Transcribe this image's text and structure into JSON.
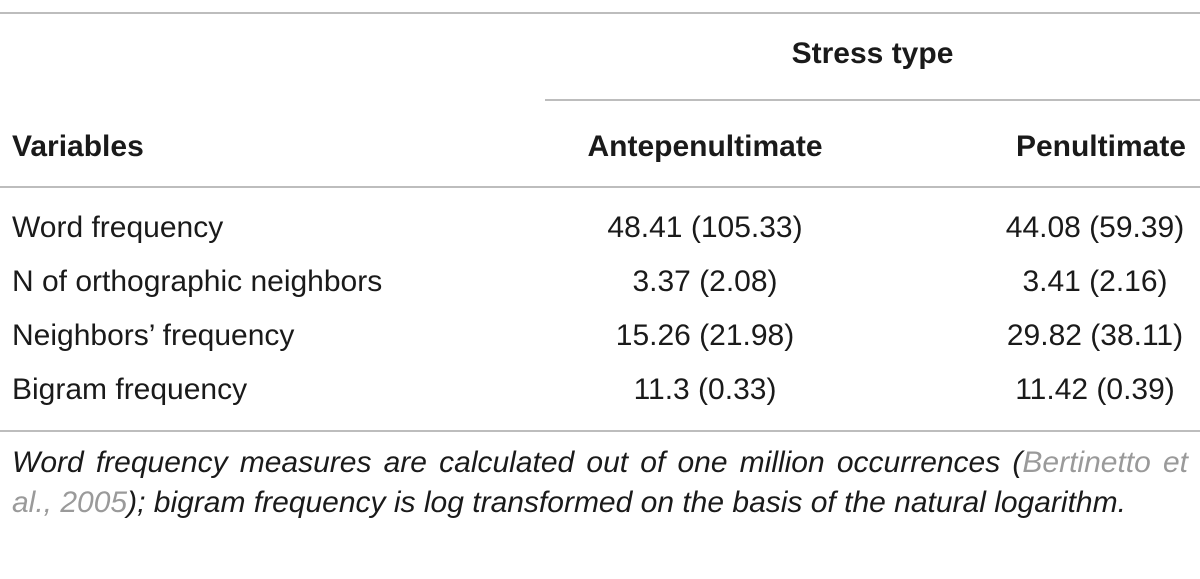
{
  "table": {
    "group_header": "Stress type",
    "columns": {
      "variables": "Variables",
      "antepenultimate": "Antepenultimate",
      "penultimate": "Penultimate"
    },
    "rows": [
      {
        "variable": "Word frequency",
        "antepenultimate": "48.41 (105.33)",
        "penultimate": "44.08 (59.39)"
      },
      {
        "variable": "N of orthographic neighbors",
        "antepenultimate": "3.37 (2.08)",
        "penultimate": "3.41 (2.16)"
      },
      {
        "variable": "Neighbors’ frequency",
        "antepenultimate": "15.26 (21.98)",
        "penultimate": "29.82 (38.11)"
      },
      {
        "variable": "Bigram frequency",
        "antepenultimate": "11.3 (0.33)",
        "penultimate": "11.42 (0.39)"
      }
    ]
  },
  "footnote": {
    "text_before": "Word frequency measures are calculated out of one million occurrences (",
    "citation": "Bertinetto et al., 2005",
    "text_after": "); bigram frequency is log transformed on the basis of the natural logarithm."
  },
  "colors": {
    "rule": "#bdbdbd",
    "text": "#1a1a1a",
    "citation": "#9a9a9a"
  }
}
